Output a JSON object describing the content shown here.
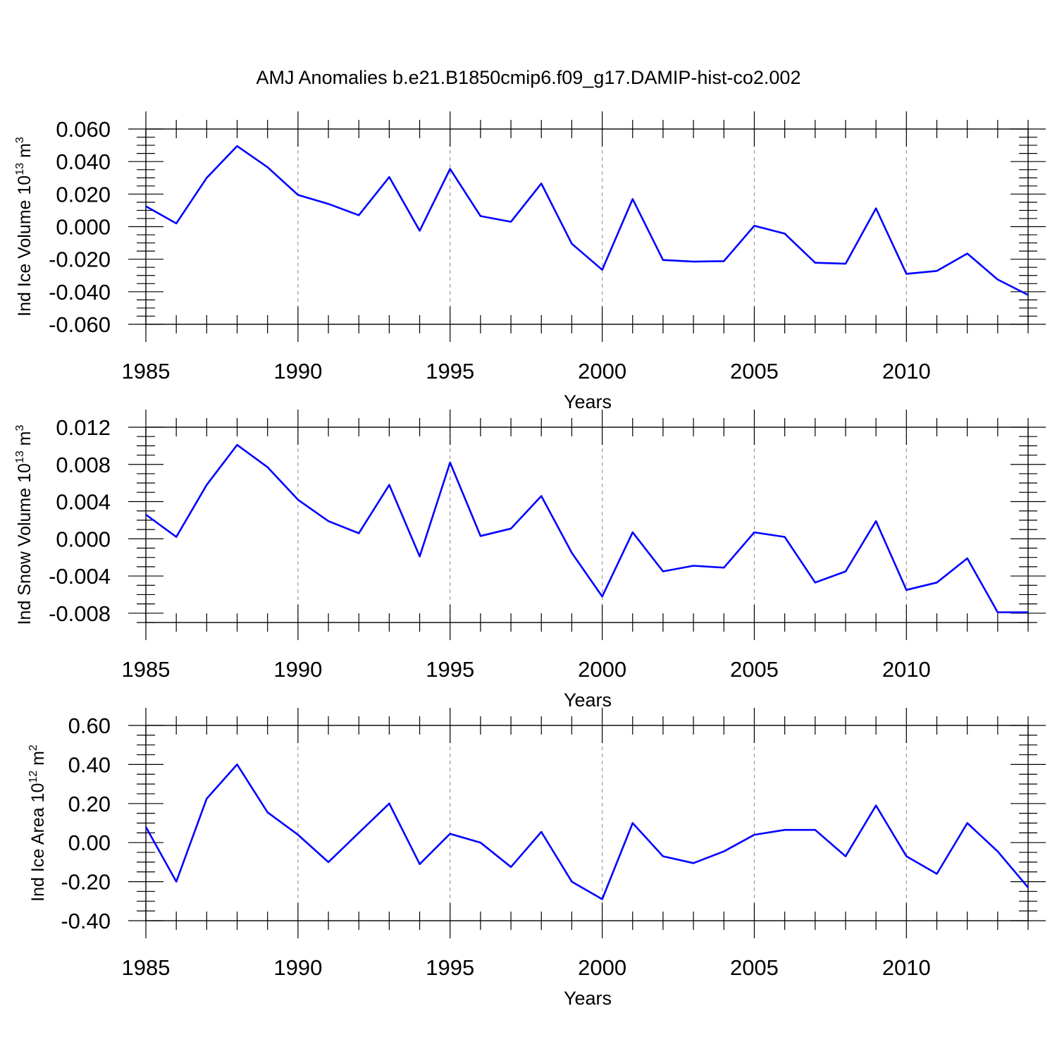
{
  "figure": {
    "title": "AMJ Anomalies b.e21.B1850cmip6.f09_g17.DAMIP-hist-co2.002",
    "line_color": "#0000ff",
    "grid_color": "#999999",
    "axis_color": "#000000"
  },
  "chart_data": [
    {
      "type": "line",
      "title": "",
      "xlabel": "Years",
      "ylabel": "Ind Ice Volume 10",
      "ylabel_exp": "13",
      "ylabel_unit": " m",
      "ylabel_unit_exp": "3",
      "xlim": [
        1985,
        2014
      ],
      "ylim": [
        -0.06,
        0.06
      ],
      "x_ticks": [
        1985,
        1990,
        1995,
        2000,
        2005,
        2010
      ],
      "x_tick_labels": [
        "1985",
        "1990",
        "1995",
        "2000",
        "2005",
        "2010"
      ],
      "y_ticks": [
        0.06,
        0.04,
        0.02,
        0.0,
        -0.02,
        -0.04,
        -0.06
      ],
      "y_tick_labels": [
        "0.060",
        "0.040",
        "0.020",
        "0.000",
        "-0.020",
        "-0.040",
        "-0.060"
      ],
      "y_minor_step": 0.005,
      "grid": "vertical dashed at major x ticks",
      "x": [
        1985,
        1986,
        1987,
        1988,
        1989,
        1990,
        1991,
        1992,
        1993,
        1994,
        1995,
        1996,
        1997,
        1998,
        1999,
        2000,
        2001,
        2002,
        2003,
        2004,
        2005,
        2006,
        2007,
        2008,
        2009,
        2010,
        2011,
        2012,
        2013,
        2014
      ],
      "series": [
        {
          "values": [
            0.0125,
            0.002,
            0.03,
            0.0495,
            0.0365,
            0.0195,
            0.014,
            0.007,
            0.0305,
            -0.0025,
            0.0355,
            0.0065,
            0.003,
            0.0265,
            -0.0105,
            -0.0265,
            0.017,
            -0.0205,
            -0.0215,
            -0.0212,
            0.0005,
            -0.0043,
            -0.0222,
            -0.0228,
            0.0112,
            -0.029,
            -0.0272,
            -0.0165,
            -0.0325,
            -0.042
          ]
        }
      ]
    },
    {
      "type": "line",
      "title": "",
      "xlabel": "Years",
      "ylabel": "Ind Snow Volume 10",
      "ylabel_exp": "13",
      "ylabel_unit": " m",
      "ylabel_unit_exp": "3",
      "xlim": [
        1985,
        2014
      ],
      "ylim": [
        -0.009,
        0.012
      ],
      "x_ticks": [
        1985,
        1990,
        1995,
        2000,
        2005,
        2010
      ],
      "x_tick_labels": [
        "1985",
        "1990",
        "1995",
        "2000",
        "2005",
        "2010"
      ],
      "y_ticks": [
        0.012,
        0.008,
        0.004,
        0.0,
        -0.004,
        -0.008
      ],
      "y_tick_labels": [
        "0.012",
        "0.008",
        "0.004",
        "0.000",
        "-0.004",
        "-0.008"
      ],
      "y_minor_step": 0.001,
      "grid": "vertical dashed at major x ticks",
      "x": [
        1985,
        1986,
        1987,
        1988,
        1989,
        1990,
        1991,
        1992,
        1993,
        1994,
        1995,
        1996,
        1997,
        1998,
        1999,
        2000,
        2001,
        2002,
        2003,
        2004,
        2005,
        2006,
        2007,
        2008,
        2009,
        2010,
        2011,
        2012,
        2013,
        2014
      ],
      "series": [
        {
          "values": [
            0.0026,
            0.0002,
            0.0058,
            0.0101,
            0.0077,
            0.0042,
            0.0019,
            0.0006,
            0.0058,
            -0.0019,
            0.0082,
            0.0003,
            0.0011,
            0.0046,
            -0.0015,
            -0.0062,
            0.0007,
            -0.0035,
            -0.0029,
            -0.0031,
            0.0007,
            0.0002,
            -0.0047,
            -0.0035,
            0.0019,
            -0.0055,
            -0.0047,
            -0.0021,
            -0.0079,
            -0.0079
          ]
        }
      ]
    },
    {
      "type": "line",
      "title": "",
      "xlabel": "Years",
      "ylabel": "Ind Ice Area 10",
      "ylabel_exp": "12",
      "ylabel_unit": " m",
      "ylabel_unit_exp": "2",
      "xlim": [
        1985,
        2014
      ],
      "ylim": [
        -0.4,
        0.6
      ],
      "x_ticks": [
        1985,
        1990,
        1995,
        2000,
        2005,
        2010
      ],
      "x_tick_labels": [
        "1985",
        "1990",
        "1995",
        "2000",
        "2005",
        "2010"
      ],
      "y_ticks": [
        0.6,
        0.4,
        0.2,
        0.0,
        -0.2,
        -0.4
      ],
      "y_tick_labels": [
        "0.60",
        "0.40",
        "0.20",
        "0.00",
        "-0.20",
        "-0.40"
      ],
      "y_minor_step": 0.05,
      "grid": "vertical dashed at major x ticks",
      "x": [
        1985,
        1986,
        1987,
        1988,
        1989,
        1990,
        1991,
        1992,
        1993,
        1994,
        1995,
        1996,
        1997,
        1998,
        1999,
        2000,
        2001,
        2002,
        2003,
        2004,
        2005,
        2006,
        2007,
        2008,
        2009,
        2010,
        2011,
        2012,
        2013,
        2014
      ],
      "series": [
        {
          "values": [
            0.08,
            -0.2,
            0.225,
            0.4,
            0.155,
            0.04,
            -0.1,
            0.05,
            0.2,
            -0.11,
            0.045,
            0.0,
            -0.125,
            0.055,
            -0.2,
            -0.29,
            0.1,
            -0.07,
            -0.105,
            -0.045,
            0.04,
            0.065,
            0.065,
            -0.07,
            0.19,
            -0.07,
            -0.16,
            0.1,
            -0.045,
            -0.23
          ]
        }
      ]
    }
  ]
}
